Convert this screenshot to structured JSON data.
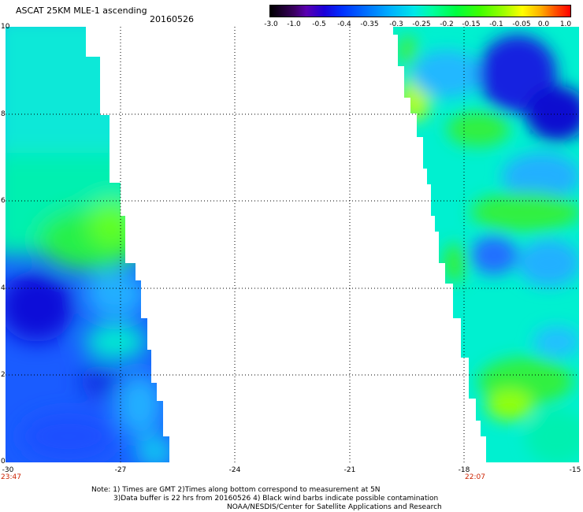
{
  "header": {
    "title": "ASCAT 25KM MLE-1 ascending",
    "date": "20160526"
  },
  "colorbar": {
    "labels": [
      "-3.0",
      "-1.0",
      "-0.5",
      "-0.4",
      "-0.35",
      "-0.3",
      "-0.25",
      "-0.2",
      "-0.15",
      "-0.1",
      "-0.05",
      "0.0",
      "1.0"
    ],
    "colors": [
      "#000000",
      "#5a00b0",
      "#0030ff",
      "#0070ff",
      "#00b0ff",
      "#00e8e8",
      "#00ffa0",
      "#00ff40",
      "#40ff00",
      "#a0ff00",
      "#ffff00",
      "#ffb000",
      "#ff0000"
    ]
  },
  "map": {
    "lon_range": [
      -30,
      -15
    ],
    "lat_range": [
      0,
      10
    ],
    "x_ticks": [
      "-30",
      "-27",
      "-24",
      "-21",
      "-18",
      "-15"
    ],
    "y_ticks": [
      "0",
      "2",
      "4",
      "6",
      "8",
      "10"
    ],
    "times": [
      "23:47",
      "22:07"
    ],
    "swath_colors": {
      "deep_blue": "#1020e0",
      "blue": "#1a5cff",
      "light_blue": "#20b0ff",
      "cyan": "#00f0e0",
      "aqua_green": "#00f0a0",
      "green": "#30f040",
      "yellow_green": "#b0ff00"
    }
  },
  "notes": [
    "Note: 1) Times are GMT 2)Times along bottom correspond to measurement at 5N",
    "3)Data buffer is 22 hrs from 20160526 4) Black wind barbs indicate possible contamination",
    "NOAA/NESDIS/Center for Satellite Applications and Research"
  ]
}
